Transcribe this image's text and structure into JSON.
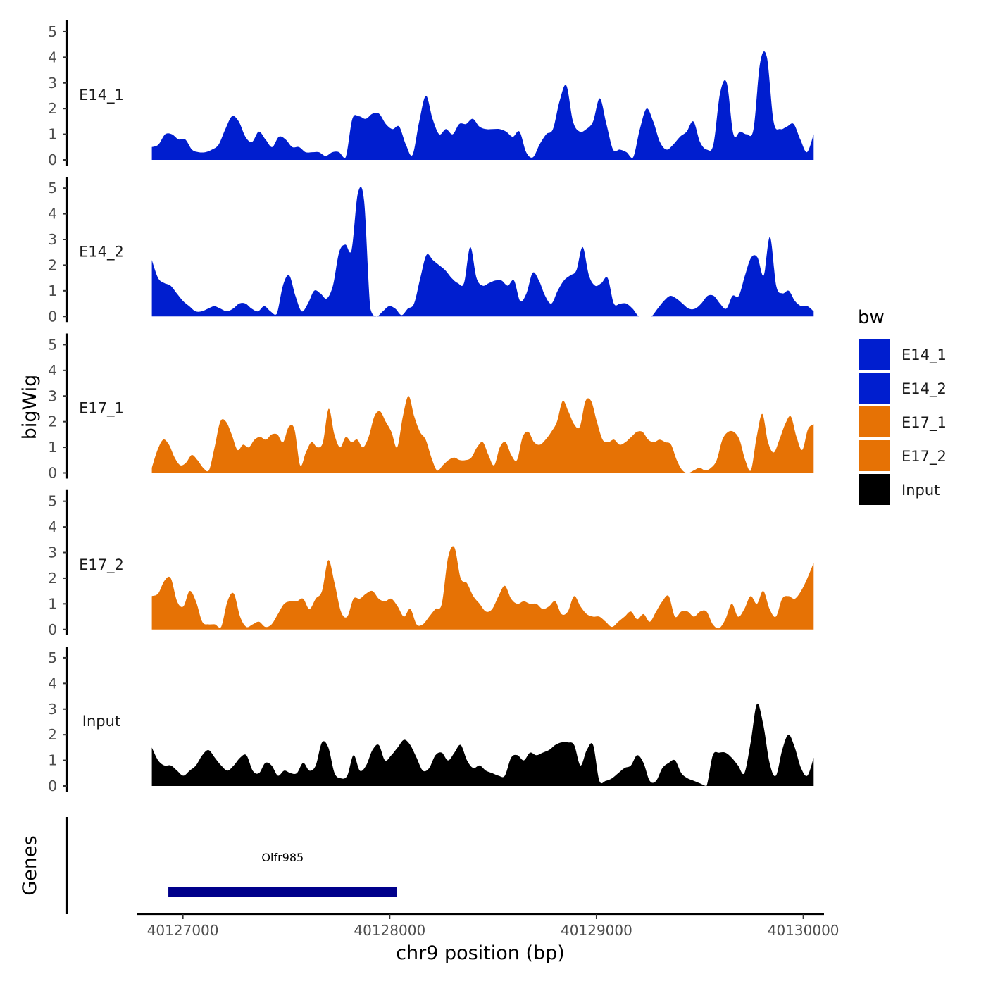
{
  "chart_data": {
    "type": "area",
    "title": "",
    "ylabel": "bigWig",
    "xlabel": "chr9 position (bp)",
    "genes_label": "Genes",
    "x_range": [
      40126850,
      40130050
    ],
    "xlim": [
      40126780,
      40130100
    ],
    "x_ticks": [
      40127000,
      40128000,
      40129000,
      40130000
    ],
    "x_tick_labels": [
      "40127000",
      "40128000",
      "40129000",
      "40130000"
    ],
    "ylim": [
      0,
      5.3
    ],
    "y_ticks": [
      0,
      1,
      2,
      3,
      4,
      5
    ],
    "y_tick_labels": [
      "0",
      "1",
      "2",
      "3",
      "4",
      "5"
    ],
    "legend": {
      "title": "bw",
      "placement": "right",
      "entries": [
        {
          "label": "E14_1",
          "color": "#001ecf"
        },
        {
          "label": "E14_2",
          "color": "#001ecf"
        },
        {
          "label": "E17_1",
          "color": "#e67205"
        },
        {
          "label": "E17_2",
          "color": "#e67205"
        },
        {
          "label": "Input",
          "color": "#000000"
        }
      ]
    },
    "series": [
      {
        "name": "E14_1",
        "color": "#001ecf",
        "values": [
          0.5,
          0.6,
          1.0,
          1.0,
          0.8,
          0.8,
          0.4,
          0.3,
          0.3,
          0.4,
          0.6,
          1.2,
          1.7,
          1.5,
          0.9,
          0.7,
          1.1,
          0.8,
          0.5,
          0.9,
          0.8,
          0.5,
          0.5,
          0.3,
          0.3,
          0.3,
          0.15,
          0.3,
          0.3,
          0.1,
          1.6,
          1.7,
          1.6,
          1.8,
          1.8,
          1.4,
          1.2,
          1.3,
          0.6,
          0.2,
          1.5,
          2.5,
          1.6,
          1.0,
          1.2,
          1.0,
          1.4,
          1.4,
          1.6,
          1.3,
          1.2,
          1.2,
          1.2,
          1.1,
          0.9,
          1.1,
          0.3,
          0.1,
          0.6,
          1.0,
          1.2,
          2.3,
          2.9,
          1.5,
          1.1,
          1.2,
          1.5,
          2.4,
          1.4,
          0.4,
          0.4,
          0.3,
          0.1,
          1.2,
          2.0,
          1.5,
          0.7,
          0.4,
          0.6,
          0.9,
          1.1,
          1.5,
          0.7,
          0.4,
          0.6,
          2.6,
          3.0,
          1.0,
          1.1,
          1.0,
          1.2,
          3.8,
          4.0,
          1.5,
          1.2,
          1.3,
          1.4,
          0.8,
          0.3,
          1.0
        ]
      },
      {
        "name": "E14_2",
        "color": "#001ecf",
        "values": [
          2.2,
          1.5,
          1.3,
          1.2,
          0.9,
          0.6,
          0.4,
          0.2,
          0.2,
          0.3,
          0.4,
          0.3,
          0.2,
          0.3,
          0.5,
          0.5,
          0.3,
          0.2,
          0.4,
          0.2,
          0.1,
          1.2,
          1.6,
          0.8,
          0.2,
          0.5,
          1.0,
          0.9,
          0.7,
          1.2,
          2.5,
          2.8,
          2.6,
          4.8,
          4.5,
          0.3,
          0.0,
          0.2,
          0.4,
          0.3,
          0.05,
          0.3,
          0.5,
          1.5,
          2.4,
          2.2,
          2.0,
          1.8,
          1.5,
          1.3,
          1.3,
          2.7,
          1.5,
          1.2,
          1.3,
          1.4,
          1.4,
          1.2,
          1.4,
          0.6,
          0.9,
          1.7,
          1.4,
          0.8,
          0.5,
          1.0,
          1.4,
          1.6,
          1.8,
          2.7,
          1.6,
          1.2,
          1.3,
          1.5,
          0.5,
          0.5,
          0.5,
          0.3,
          0.0,
          0.0,
          0.0,
          0.3,
          0.6,
          0.8,
          0.7,
          0.5,
          0.3,
          0.3,
          0.5,
          0.8,
          0.8,
          0.5,
          0.3,
          0.8,
          0.8,
          1.6,
          2.3,
          2.3,
          1.6,
          3.1,
          1.2,
          0.9,
          1.0,
          0.6,
          0.4,
          0.4,
          0.2
        ]
      },
      {
        "name": "E17_1",
        "color": "#e67205",
        "values": [
          0.2,
          0.9,
          1.3,
          1.1,
          0.6,
          0.3,
          0.4,
          0.7,
          0.5,
          0.2,
          0.1,
          1.0,
          2.0,
          2.0,
          1.5,
          0.9,
          1.1,
          1.0,
          1.3,
          1.4,
          1.3,
          1.5,
          1.5,
          1.2,
          1.8,
          1.7,
          0.3,
          0.8,
          1.2,
          1.0,
          1.2,
          2.5,
          1.5,
          1.0,
          1.4,
          1.2,
          1.3,
          1.0,
          1.4,
          2.2,
          2.4,
          2.0,
          1.6,
          1.0,
          2.2,
          3.0,
          2.2,
          1.6,
          1.3,
          0.6,
          0.1,
          0.3,
          0.5,
          0.6,
          0.5,
          0.5,
          0.6,
          1.0,
          1.2,
          0.7,
          0.3,
          1.0,
          1.2,
          0.7,
          0.5,
          1.4,
          1.6,
          1.2,
          1.1,
          1.3,
          1.6,
          2.0,
          2.8,
          2.4,
          1.9,
          1.8,
          2.8,
          2.8,
          2.0,
          1.3,
          1.2,
          1.3,
          1.1,
          1.2,
          1.4,
          1.6,
          1.6,
          1.3,
          1.2,
          1.3,
          1.2,
          1.1,
          0.5,
          0.1,
          0.0,
          0.1,
          0.2,
          0.1,
          0.2,
          0.5,
          1.3,
          1.6,
          1.6,
          1.3,
          0.5,
          0.1,
          1.4,
          2.3,
          1.2,
          0.8,
          1.3,
          1.9,
          2.2,
          1.4,
          0.9,
          1.7,
          1.9
        ]
      },
      {
        "name": "E17_2",
        "color": "#e67205",
        "values": [
          1.3,
          1.4,
          1.9,
          2.0,
          1.1,
          0.9,
          1.5,
          1.1,
          0.3,
          0.2,
          0.2,
          0.1,
          1.1,
          1.4,
          0.5,
          0.1,
          0.2,
          0.3,
          0.1,
          0.2,
          0.6,
          1.0,
          1.1,
          1.1,
          1.2,
          0.8,
          1.2,
          1.5,
          2.7,
          1.8,
          0.7,
          0.5,
          1.2,
          1.2,
          1.4,
          1.5,
          1.2,
          1.1,
          1.2,
          0.9,
          0.5,
          0.8,
          0.2,
          0.2,
          0.5,
          0.8,
          1.0,
          2.8,
          3.2,
          2.0,
          1.8,
          1.3,
          1.0,
          0.7,
          0.8,
          1.3,
          1.7,
          1.2,
          1.0,
          1.1,
          1.0,
          1.0,
          0.8,
          0.9,
          1.1,
          0.6,
          0.7,
          1.3,
          0.9,
          0.6,
          0.5,
          0.5,
          0.3,
          0.1,
          0.3,
          0.5,
          0.7,
          0.4,
          0.6,
          0.3,
          0.7,
          1.1,
          1.3,
          0.5,
          0.7,
          0.7,
          0.5,
          0.7,
          0.7,
          0.2,
          0.05,
          0.4,
          1.0,
          0.5,
          0.8,
          1.3,
          1.0,
          1.5,
          0.8,
          0.5,
          1.2,
          1.3,
          1.2,
          1.5,
          2.0,
          2.6
        ]
      },
      {
        "name": "Input",
        "color": "#000000",
        "values": [
          1.5,
          1.0,
          0.8,
          0.8,
          0.6,
          0.4,
          0.6,
          0.8,
          1.2,
          1.4,
          1.1,
          0.8,
          0.6,
          0.8,
          1.1,
          1.2,
          0.6,
          0.5,
          0.9,
          0.8,
          0.4,
          0.6,
          0.5,
          0.5,
          0.9,
          0.6,
          0.8,
          1.7,
          1.5,
          0.5,
          0.3,
          0.4,
          1.2,
          0.6,
          0.8,
          1.4,
          1.6,
          1.0,
          1.2,
          1.5,
          1.8,
          1.6,
          1.1,
          0.6,
          0.7,
          1.2,
          1.3,
          1.0,
          1.3,
          1.6,
          1.0,
          0.7,
          0.8,
          0.6,
          0.5,
          0.4,
          0.4,
          1.1,
          1.2,
          1.0,
          1.3,
          1.2,
          1.3,
          1.4,
          1.6,
          1.7,
          1.7,
          1.6,
          0.8,
          1.4,
          1.6,
          0.2,
          0.2,
          0.3,
          0.5,
          0.7,
          0.8,
          1.2,
          0.9,
          0.2,
          0.2,
          0.7,
          0.9,
          1.0,
          0.5,
          0.3,
          0.2,
          0.1,
          0.0,
          1.2,
          1.3,
          1.3,
          1.1,
          0.8,
          0.5,
          1.7,
          3.2,
          2.4,
          0.9,
          0.4,
          1.4,
          2.0,
          1.5,
          0.7,
          0.4,
          1.1
        ]
      }
    ],
    "genes": [
      {
        "name": "Olfr985",
        "start": 40126930,
        "end": 40128035,
        "color": "#00008b"
      }
    ]
  }
}
